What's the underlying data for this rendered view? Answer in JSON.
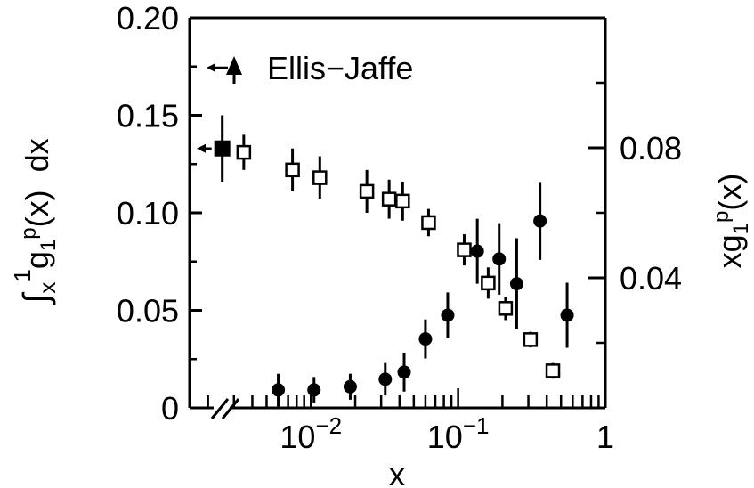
{
  "chart_data": {
    "type": "scatter",
    "x_axis": {
      "label": "x",
      "scale": "log",
      "range": [
        0.0015,
        1
      ],
      "tick_labels": [
        {
          "value": 0.01,
          "base": "10",
          "exponent": "−2"
        },
        {
          "value": 0.1,
          "base": "10",
          "exponent": "−1"
        },
        {
          "value": 1,
          "text": "1"
        }
      ],
      "axis_break": true
    },
    "y_left": {
      "label_parts": {
        "integral": "∫",
        "lower": "x",
        "upper": "1",
        "body": "g",
        "sub": "1",
        "sup": "p",
        "arg": "(x)",
        "dx": "dx"
      },
      "range": [
        0,
        0.2
      ],
      "tick_labels": [
        "0",
        "0.05",
        "0.10",
        "0.15",
        "0.20"
      ],
      "tick_values": [
        0,
        0.05,
        0.1,
        0.15,
        0.2
      ]
    },
    "y_right": {
      "label_parts": {
        "prefix": "xg",
        "sub": "1",
        "sup": "p",
        "arg": "(x)"
      },
      "range": [
        0.0,
        0.12
      ],
      "tick_labels": [
        "0.04",
        "0.08"
      ],
      "tick_values": [
        0.04,
        0.08
      ],
      "minor_values": [
        0.02,
        0.06,
        0.1
      ]
    },
    "legend": {
      "text": "Ellis−Jaffe",
      "position": "top-left"
    },
    "grid": false,
    "series": [
      {
        "marker": "open-square",
        "axis": "left",
        "points": [
          {
            "x": 0.0035,
            "y": 0.131,
            "err": 0.009
          },
          {
            "x": 0.0075,
            "y": 0.122,
            "err": 0.011
          },
          {
            "x": 0.0115,
            "y": 0.118,
            "err": 0.011
          },
          {
            "x": 0.024,
            "y": 0.111,
            "err": 0.011
          },
          {
            "x": 0.034,
            "y": 0.107,
            "err": 0.01
          },
          {
            "x": 0.042,
            "y": 0.106,
            "err": 0.01
          },
          {
            "x": 0.063,
            "y": 0.095,
            "err": 0.007
          },
          {
            "x": 0.11,
            "y": 0.081,
            "err": 0.008
          },
          {
            "x": 0.16,
            "y": 0.064,
            "err": 0.008
          },
          {
            "x": 0.21,
            "y": 0.051,
            "err": 0.006
          },
          {
            "x": 0.31,
            "y": 0.035,
            "err": 0.004
          },
          {
            "x": 0.44,
            "y": 0.019,
            "err": 0.004
          }
        ]
      },
      {
        "marker": "filled-circle",
        "axis": "right",
        "points": [
          {
            "x": 0.006,
            "y": 0.0055,
            "err": 0.005
          },
          {
            "x": 0.0105,
            "y": 0.0055,
            "err": 0.004
          },
          {
            "x": 0.0185,
            "y": 0.0065,
            "err": 0.004
          },
          {
            "x": 0.032,
            "y": 0.0088,
            "err": 0.005
          },
          {
            "x": 0.043,
            "y": 0.011,
            "err": 0.006
          },
          {
            "x": 0.06,
            "y": 0.0212,
            "err": 0.006
          },
          {
            "x": 0.085,
            "y": 0.0285,
            "err": 0.007
          },
          {
            "x": 0.135,
            "y": 0.0482,
            "err": 0.01
          },
          {
            "x": 0.19,
            "y": 0.0458,
            "err": 0.011
          },
          {
            "x": 0.25,
            "y": 0.0382,
            "err": 0.014
          },
          {
            "x": 0.36,
            "y": 0.0575,
            "err": 0.012
          },
          {
            "x": 0.55,
            "y": 0.0285,
            "err": 0.01
          }
        ]
      }
    ],
    "reference_points": [
      {
        "marker": "filled-square",
        "axis": "left",
        "x": 0.0025,
        "y": 0.133,
        "err": 0.017,
        "arrow": true
      }
    ],
    "colors": {
      "foreground": "#000000",
      "background": "#ffffff"
    }
  }
}
